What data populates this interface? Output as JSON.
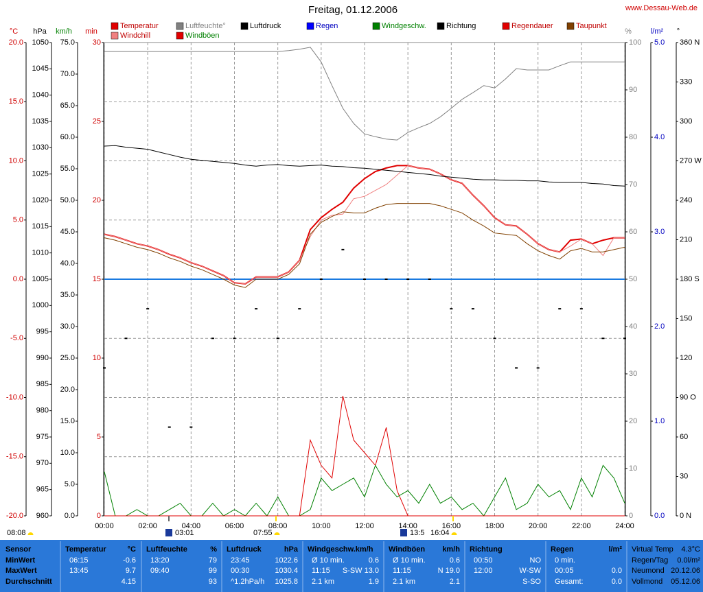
{
  "header": {
    "site": "www.Dessau-Web.de"
  },
  "chart_data": {
    "type": "line",
    "title": "Freitag, 01.12.2006",
    "grid": true,
    "zero_line_color": "#1a7ae0",
    "xlim": [
      0,
      24
    ],
    "xticks": [
      {
        "value": 0,
        "label": "00:00"
      },
      {
        "value": 2,
        "label": "02:00"
      },
      {
        "value": 4,
        "label": "04:00"
      },
      {
        "value": 6,
        "label": "06:00"
      },
      {
        "value": 8,
        "label": "08:00"
      },
      {
        "value": 10,
        "label": "10:00"
      },
      {
        "value": 12,
        "label": "12:00"
      },
      {
        "value": 14,
        "label": "14:00"
      },
      {
        "value": 16,
        "label": "16:00"
      },
      {
        "value": 18,
        "label": "18:00"
      },
      {
        "value": 20,
        "label": "20:00"
      },
      {
        "value": 22,
        "label": "22:00"
      },
      {
        "value": 24,
        "label": "24:00"
      }
    ],
    "x": [
      0,
      0.5,
      1,
      1.5,
      2,
      2.5,
      3,
      3.5,
      4,
      4.5,
      5,
      5.5,
      6,
      6.5,
      7,
      7.5,
      8,
      8.5,
      9,
      9.5,
      10,
      10.5,
      11,
      11.5,
      12,
      12.5,
      13,
      13.5,
      14,
      14.5,
      15,
      15.5,
      16,
      16.5,
      17,
      17.5,
      18,
      18.5,
      19,
      19.5,
      20,
      20.5,
      21,
      21.5,
      22,
      22.5,
      23,
      23.5,
      24
    ],
    "axes": [
      {
        "label": "°C",
        "color": "#d00000",
        "title_color": "#d00000",
        "lim": [
          -20,
          20
        ],
        "ticks": [
          {
            "value": 20,
            "label": "20.0"
          },
          {
            "value": 15,
            "label": "15.0"
          },
          {
            "value": 10,
            "label": "10.0"
          },
          {
            "value": 5,
            "label": "5.0"
          },
          {
            "value": 0,
            "label": "0.0"
          },
          {
            "value": -5,
            "label": "-5.0"
          },
          {
            "value": -10,
            "label": "-10.0"
          },
          {
            "value": -15,
            "label": "-15.0"
          },
          {
            "value": -20,
            "label": "-20.0"
          }
        ]
      },
      {
        "label": "hPa",
        "color": "#000000",
        "title_color": "#000000",
        "lim": [
          960,
          1050
        ],
        "ticks": [
          1050,
          1045,
          1040,
          1035,
          1030,
          1025,
          1020,
          1015,
          1010,
          1005,
          1000,
          995,
          990,
          985,
          980,
          975,
          970,
          965,
          960
        ]
      },
      {
        "label": "km/h",
        "color": "#000000",
        "title_color": "#008000",
        "lim": [
          0,
          75
        ],
        "ticks": [
          {
            "value": 75,
            "label": "75.0"
          },
          {
            "value": 70,
            "label": "70.0"
          },
          {
            "value": 65,
            "label": "65.0"
          },
          {
            "value": 60,
            "label": "60.0"
          },
          {
            "value": 55,
            "label": "55.0"
          },
          {
            "value": 50,
            "label": "50.0"
          },
          {
            "value": 45,
            "label": "45.0"
          },
          {
            "value": 40,
            "label": "40.0"
          },
          {
            "value": 35,
            "label": "35.0"
          },
          {
            "value": 30,
            "label": "30.0"
          },
          {
            "value": 25,
            "label": "25.0"
          },
          {
            "value": 20,
            "label": "20.0"
          },
          {
            "value": 15,
            "label": "15.0"
          },
          {
            "value": 10,
            "label": "10.0"
          },
          {
            "value": 5,
            "label": "5.0"
          },
          {
            "value": 0,
            "label": "0.0"
          }
        ]
      },
      {
        "label": "min",
        "color": "#d00000",
        "title_color": "#d00000",
        "lim": [
          0,
          30
        ],
        "ticks": [
          30,
          25,
          20,
          15,
          10,
          5,
          0
        ]
      },
      {
        "label": "%",
        "color": "#808080",
        "title_color": "#808080",
        "lim": [
          0,
          100
        ],
        "ticks": [
          100,
          90,
          80,
          70,
          60,
          50,
          40,
          30,
          20,
          10,
          0
        ]
      },
      {
        "label": "l/m²",
        "color": "#0000c0",
        "title_color": "#0000c0",
        "lim": [
          0,
          5
        ],
        "ticks": [
          {
            "value": 5,
            "label": "5.0"
          },
          {
            "value": 4,
            "label": "4.0"
          },
          {
            "value": 3,
            "label": "3.0"
          },
          {
            "value": 2,
            "label": "2.0"
          },
          {
            "value": 1,
            "label": "1.0"
          },
          {
            "value": 0,
            "label": "0.0"
          }
        ]
      },
      {
        "label": "°",
        "color": "#000000",
        "title_color": "#000000",
        "lim": [
          0,
          360
        ],
        "ticks": [
          {
            "value": 360,
            "label": "360 N"
          },
          {
            "value": 330,
            "label": "330"
          },
          {
            "value": 300,
            "label": "300"
          },
          {
            "value": 270,
            "label": "270 W"
          },
          {
            "value": 240,
            "label": "240"
          },
          {
            "value": 210,
            "label": "210"
          },
          {
            "value": 180,
            "label": "180 S"
          },
          {
            "value": 150,
            "label": "150"
          },
          {
            "value": 120,
            "label": "120"
          },
          {
            "value": 90,
            "label": "90  O"
          },
          {
            "value": 60,
            "label": "60"
          },
          {
            "value": 30,
            "label": "30"
          },
          {
            "value": 0,
            "label": "0  N"
          }
        ]
      }
    ],
    "series": [
      {
        "name": "Temperatur",
        "color": "#e00000",
        "legend_color": "#c00000",
        "axis": 0,
        "values": [
          3.8,
          3.6,
          3.3,
          3.0,
          2.8,
          2.5,
          2.1,
          1.8,
          1.4,
          1.1,
          0.7,
          0.3,
          -0.3,
          -0.4,
          0.2,
          0.2,
          0.2,
          0.6,
          1.6,
          4.2,
          5.2,
          5.9,
          6.5,
          7.7,
          8.5,
          9.1,
          9.4,
          9.6,
          9.6,
          9.4,
          9.3,
          8.9,
          8.4,
          8.1,
          7.1,
          6.2,
          5.2,
          4.6,
          4.5,
          3.8,
          3.0,
          2.5,
          2.3,
          3.3,
          3.4,
          3.0,
          3.3,
          3.5,
          3.5
        ]
      },
      {
        "name": "Windchill",
        "color": "#f08080",
        "legend_color": "#c00000",
        "axis": 0,
        "values": [
          3.8,
          3.6,
          3.3,
          3.0,
          2.8,
          2.5,
          2.1,
          1.8,
          1.4,
          1.1,
          0.7,
          0.3,
          -0.3,
          -0.4,
          0.2,
          0.2,
          0.2,
          0.6,
          1.6,
          3.6,
          5.0,
          5.4,
          5.5,
          6.8,
          7.0,
          7.5,
          8.0,
          8.8,
          9.6,
          9.4,
          9.3,
          8.9,
          8.4,
          8.1,
          7.1,
          6.2,
          5.2,
          4.6,
          4.5,
          3.8,
          3.0,
          2.5,
          2.3,
          2.8,
          3.4,
          3.0,
          2.0,
          3.5,
          3.5
        ]
      },
      {
        "name": "Luftfeuchte°",
        "color": "#808080",
        "legend_color": "#808080",
        "axis": 4,
        "values": [
          98.1,
          98.1,
          98.1,
          98.1,
          98.1,
          98.1,
          98.1,
          98.1,
          98.1,
          98.1,
          98.1,
          98.1,
          98.1,
          98.1,
          98.1,
          98.1,
          98.1,
          98.3,
          98.6,
          99.0,
          95.9,
          90.9,
          86.1,
          82.9,
          80.7,
          80.1,
          79.6,
          79.4,
          81.0,
          82.0,
          82.9,
          84.3,
          86.1,
          88.0,
          89.4,
          90.9,
          90.4,
          92.3,
          94.5,
          94.2,
          94.2,
          94.2,
          95.1,
          95.9,
          95.9,
          95.9,
          95.9,
          95.9,
          95.9
        ]
      },
      {
        "name": "Windböen",
        "color": "#e00000",
        "legend_color": "#008000",
        "axis": 2,
        "values": [
          0,
          0,
          0,
          0,
          0,
          0,
          0,
          0,
          0,
          0,
          0,
          0,
          0,
          0,
          0,
          0,
          0,
          0,
          0,
          12,
          8,
          6,
          19,
          12,
          10,
          8,
          14,
          4,
          0,
          0,
          0,
          0,
          0,
          0,
          0,
          0,
          0,
          0,
          0,
          0,
          0,
          0,
          0,
          0,
          0,
          0,
          0,
          0,
          0
        ]
      },
      {
        "name": "Luftdruck",
        "color": "#000000",
        "legend_color": "#000000",
        "axis": 1,
        "values": [
          1030.3,
          1030.4,
          1030.1,
          1029.9,
          1029.7,
          1029.2,
          1028.7,
          1028.2,
          1027.8,
          1027.6,
          1027.4,
          1027.2,
          1027.0,
          1026.7,
          1026.5,
          1026.7,
          1026.8,
          1026.6,
          1026.5,
          1026.6,
          1026.7,
          1026.5,
          1026.4,
          1026.2,
          1026.1,
          1025.9,
          1025.7,
          1025.5,
          1025.3,
          1025.1,
          1024.9,
          1024.6,
          1024.4,
          1024.2,
          1024.0,
          1023.9,
          1023.9,
          1023.8,
          1023.8,
          1023.7,
          1023.7,
          1023.5,
          1023.4,
          1023.4,
          1023.4,
          1023.2,
          1023.1,
          1022.8,
          1022.7
        ]
      },
      {
        "name": "Regen",
        "color": "#0000ff",
        "legend_color": "#0000c0",
        "axis": 5,
        "x": [
          0,
          24
        ],
        "values": [
          0,
          0
        ]
      },
      {
        "name": "Windgeschw.",
        "color": "#008000",
        "legend_color": "#008000",
        "axis": 2,
        "values": [
          7,
          0,
          0,
          1,
          0,
          0,
          1,
          2,
          0,
          0,
          2,
          0,
          1,
          0,
          2,
          0,
          3,
          0,
          0,
          1,
          6,
          4,
          5,
          6,
          3,
          8,
          5,
          3,
          4,
          2,
          5,
          2,
          3,
          1,
          2,
          0,
          3,
          6,
          1,
          2,
          5,
          3,
          4,
          1,
          6,
          3,
          8,
          6,
          2
        ]
      },
      {
        "name": "Richtung",
        "type": "scatter",
        "color": "#000000",
        "legend_color": "#000000",
        "axis": 6,
        "x": [
          0,
          1,
          2,
          3,
          4,
          5,
          6,
          7,
          8,
          9,
          10,
          11,
          12,
          13,
          14,
          15,
          16,
          17,
          18,
          19,
          20,
          21,
          22,
          23,
          24
        ],
        "values": [
          112.5,
          135,
          157.5,
          67.5,
          67.5,
          135,
          135,
          157.5,
          135,
          157.5,
          180,
          202.5,
          180,
          180,
          180,
          180,
          157.5,
          157.5,
          135,
          112.5,
          112.5,
          157.5,
          157.5,
          135,
          135
        ]
      },
      {
        "name": "Regendauer",
        "color": "#e00000",
        "legend_color": "#c00000",
        "axis": 3,
        "x": [
          0,
          24
        ],
        "values": [
          0,
          0
        ]
      },
      {
        "name": "Taupunkt",
        "color": "#804000",
        "legend_color": "#c00000",
        "axis": 0,
        "values": [
          3.5,
          3.3,
          3.0,
          2.7,
          2.5,
          2.2,
          1.8,
          1.5,
          1.1,
          0.8,
          0.4,
          0.0,
          -0.5,
          -0.7,
          0.0,
          0.0,
          0.0,
          0.4,
          1.3,
          3.8,
          4.8,
          5.3,
          5.7,
          5.6,
          5.6,
          6.0,
          6.3,
          6.4,
          6.4,
          6.4,
          6.4,
          6.2,
          5.9,
          5.6,
          5.0,
          4.5,
          3.9,
          3.8,
          3.7,
          3.0,
          2.4,
          2.0,
          1.7,
          2.4,
          2.6,
          2.3,
          2.3,
          2.5,
          2.7
        ]
      }
    ]
  },
  "astro": [
    {
      "label": "08:08",
      "icon": "sun"
    },
    {
      "label": "03:01",
      "icon": "moon"
    },
    {
      "label": "07:55",
      "icon": "sun"
    },
    {
      "label": "13:5",
      "icon": "moon"
    },
    {
      "label": "16:04",
      "icon": "sun"
    }
  ],
  "table": {
    "columns": [
      {
        "title": "Sensor",
        "rows": [
          [
            "MinWert"
          ],
          [
            "MaxWert"
          ],
          [
            "Durchschnitt"
          ]
        ]
      },
      {
        "title": "Temperatur",
        "unit": "°C",
        "rows": [
          [
            "06:15",
            "-0.6"
          ],
          [
            "13:45",
            "9.7"
          ],
          [
            null,
            "4.15"
          ]
        ]
      },
      {
        "title": "Luftfeuchte",
        "unit": "%",
        "rows": [
          [
            "13:20",
            "79"
          ],
          [
            "09:40",
            "99"
          ],
          [
            null,
            "93"
          ]
        ]
      },
      {
        "title": "Luftdruck",
        "unit": "hPa",
        "rows": [
          [
            "23:45",
            "1022.6"
          ],
          [
            "00:30",
            "1030.4"
          ],
          [
            "^1.2hPa/h",
            "1025.8"
          ]
        ]
      },
      {
        "title": "Windgeschw.km/h",
        "rows": [
          [
            "Ø 10 min.",
            "0.6"
          ],
          [
            "11:15",
            "S-SW 13.0"
          ],
          [
            "2.1 km",
            "1.9"
          ]
        ]
      },
      {
        "title": "Windböen",
        "unit": "km/h",
        "rows": [
          [
            "Ø 10 min.",
            "0.6"
          ],
          [
            "11:15",
            "N 19.0"
          ],
          [
            "2.1 km",
            "2.1"
          ]
        ]
      },
      {
        "title": "Richtung",
        "rows": [
          [
            "00:50",
            "NO"
          ],
          [
            "12:00",
            "W-SW"
          ],
          [
            null,
            "S-SO"
          ]
        ]
      },
      {
        "title": "Regen",
        "unit": "l/m²",
        "rows": [
          [
            "0 min.",
            null
          ],
          [
            "00:05",
            "0.0"
          ],
          [
            "Gesamt:",
            "0.0"
          ]
        ]
      },
      {
        "rows": [
          [
            "Virtual Temp",
            "4.3°C"
          ],
          [
            "Regen/Tag",
            "0.0l/m²"
          ],
          [
            "Neumond",
            "20.12.06"
          ],
          [
            "Vollmond",
            "05.12.06"
          ]
        ]
      }
    ]
  }
}
